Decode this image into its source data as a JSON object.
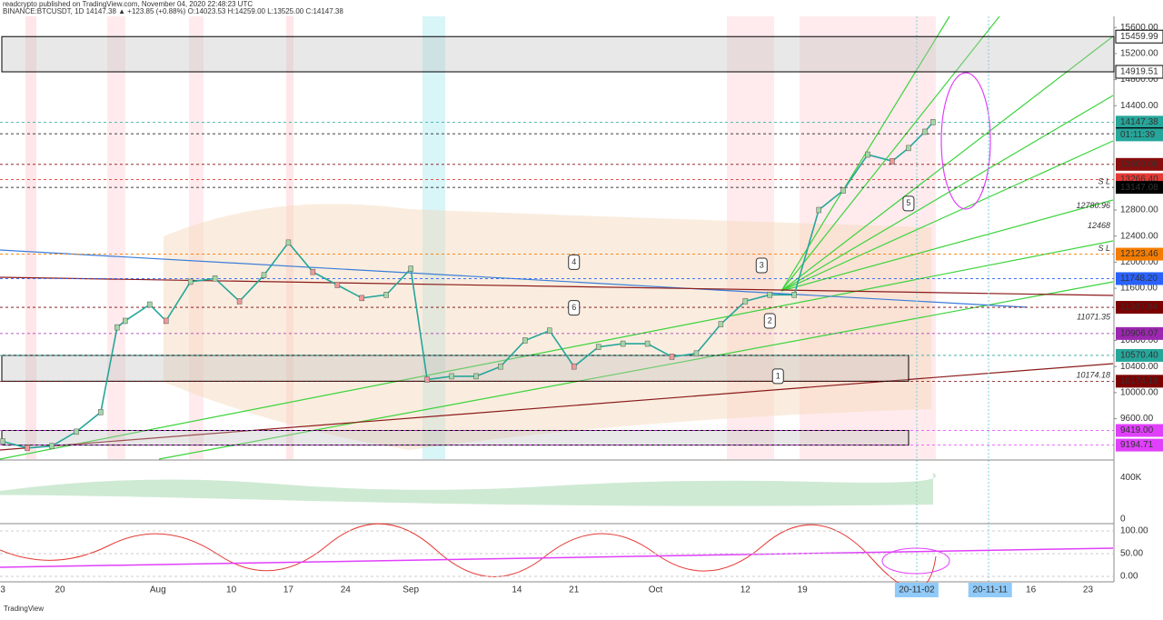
{
  "header": {
    "line1": "readcrypto published on TradingView.com, November 04, 2020 22:48:23 UTC",
    "line2": "BINANCE:BTCUSDT, 1D 14147.38 ▲ +123.85 (+0.88%) O:14023.53 H:14259.00 L:13525.00 C:14147.38"
  },
  "footer": "TradingView",
  "price_axis": {
    "ylim": [
      8980,
      15770
    ],
    "ticks": [
      {
        "value": 15600,
        "label": "15600.00"
      },
      {
        "value": 15200,
        "label": "15200.00"
      },
      {
        "value": 14800,
        "label": "14800.00"
      },
      {
        "value": 14400,
        "label": "14400.00"
      },
      {
        "value": 12800,
        "label": "12800.00"
      },
      {
        "value": 12400,
        "label": "12400.00"
      },
      {
        "value": 12000,
        "label": "12000.00"
      },
      {
        "value": 11600,
        "label": "11600.00"
      },
      {
        "value": 10800,
        "label": "10800.00"
      },
      {
        "value": 10400,
        "label": "10400.00"
      },
      {
        "value": 10000,
        "label": "10000.00"
      },
      {
        "value": 9600,
        "label": "9600.00"
      }
    ],
    "levels": [
      {
        "value": 15459.99,
        "label": "15459.99",
        "color": "#ffffff"
      },
      {
        "value": 14919.51,
        "label": "14919.51",
        "color": "#ffffff"
      },
      {
        "value": 14147.38,
        "label": "14147.38",
        "color": "#26a69a"
      },
      {
        "value": 13970,
        "label": "13970.00",
        "color": "#000000"
      },
      {
        "value": 13500,
        "label": "13500.00",
        "color": "#880e0e"
      },
      {
        "value": 13266.4,
        "label": "13266.40",
        "color": "#e53935"
      },
      {
        "value": 13147.08,
        "label": "13147.08",
        "color": "#000000"
      },
      {
        "value": 12123.46,
        "label": "12123.46",
        "color": "#f57c00"
      },
      {
        "value": 11748.2,
        "label": "11748.20",
        "color": "#2962ff"
      },
      {
        "value": 11307.84,
        "label": "11307.84",
        "color": "#7b0000"
      },
      {
        "value": 10906.07,
        "label": "10906.07",
        "color": "#9c27b0"
      },
      {
        "value": 10570.4,
        "label": "10570.40",
        "color": "#26a69a"
      },
      {
        "value": 10174.18,
        "label": "10174.18",
        "color": "#7b0000"
      },
      {
        "value": 9419,
        "label": "9419.00",
        "color": "#e040fb"
      },
      {
        "value": 9194.71,
        "label": "9194.71",
        "color": "#e040fb"
      }
    ],
    "countdown": "01:11:39"
  },
  "annotations": [
    {
      "value": 12780.96,
      "label": "12780.96"
    },
    {
      "value": 12468,
      "label": "12468"
    },
    {
      "value": 11071.35,
      "label": "11071.35"
    },
    {
      "value": 10174.18,
      "label": "10174.18"
    },
    {
      "value": 13147.08,
      "label": "S L"
    },
    {
      "value": 12123.46,
      "label": "S L"
    }
  ],
  "patterns": [
    {
      "label": "1",
      "date": "2020-10-16",
      "value": 10250
    },
    {
      "label": "2",
      "date": "2020-10-15",
      "value": 11100
    },
    {
      "label": "3",
      "date": "2020-10-14",
      "value": 11950
    },
    {
      "label": "4",
      "date": "2020-09-21",
      "value": 12000
    },
    {
      "label": "5",
      "date": "2020-11-01",
      "value": 12900
    },
    {
      "label": "6",
      "date": "2020-09-21",
      "value": 11300
    }
  ],
  "time_axis": {
    "ticks": [
      {
        "value": "2020-07-13",
        "label": "3"
      },
      {
        "value": "2020-07-20",
        "label": "20"
      },
      {
        "value": "2020-08-01",
        "label": "Aug"
      },
      {
        "value": "2020-08-10",
        "label": "10"
      },
      {
        "value": "2020-08-17",
        "label": "17"
      },
      {
        "value": "2020-08-24",
        "label": "24"
      },
      {
        "value": "2020-09-01",
        "label": "Sep"
      },
      {
        "value": "2020-09-14",
        "label": "14"
      },
      {
        "value": "2020-09-21",
        "label": "21"
      },
      {
        "value": "2020-10-01",
        "label": "Oct"
      },
      {
        "value": "2020-10-12",
        "label": "12"
      },
      {
        "value": "2020-10-19",
        "label": "19"
      },
      {
        "value": "2020-11-16",
        "label": "16"
      },
      {
        "value": "2020-11-23",
        "label": "23"
      }
    ],
    "highlights": [
      {
        "value": "2020-11-02",
        "label": "20-11-02"
      },
      {
        "value": "2020-11-11",
        "label": "20-11-11"
      }
    ]
  },
  "price": {
    "dates": [
      "2020-07-13",
      "2020-07-16",
      "2020-07-19",
      "2020-07-22",
      "2020-07-25",
      "2020-07-27",
      "2020-07-28",
      "2020-07-31",
      "2020-08-02",
      "2020-08-05",
      "2020-08-08",
      "2020-08-11",
      "2020-08-14",
      "2020-08-17",
      "2020-08-20",
      "2020-08-23",
      "2020-08-26",
      "2020-08-29",
      "2020-09-01",
      "2020-09-03",
      "2020-09-06",
      "2020-09-09",
      "2020-09-12",
      "2020-09-15",
      "2020-09-18",
      "2020-09-21",
      "2020-09-24",
      "2020-09-27",
      "2020-09-30",
      "2020-10-03",
      "2020-10-06",
      "2020-10-09",
      "2020-10-12",
      "2020-10-15",
      "2020-10-18",
      "2020-10-21",
      "2020-10-24",
      "2020-10-27",
      "2020-10-30",
      "2020-11-01",
      "2020-11-03",
      "2020-11-04"
    ],
    "closes": [
      9250,
      9150,
      9180,
      9400,
      9700,
      11000,
      11100,
      11350,
      11100,
      11700,
      11750,
      11400,
      11800,
      12300,
      11850,
      11650,
      11450,
      11500,
      11900,
      10200,
      10250,
      10250,
      10400,
      10800,
      10950,
      10400,
      10700,
      10750,
      10750,
      10550,
      10600,
      11050,
      11400,
      11500,
      11500,
      12800,
      13100,
      13650,
      13550,
      13750,
      14000,
      14147.38
    ],
    "color": "#26a69a"
  },
  "volume_axis": {
    "ticks": [
      {
        "value": 400000,
        "label": "400K"
      },
      0
    ]
  },
  "osc_axis": {
    "ticks": [
      {
        "value": 100,
        "label": "100.00"
      },
      {
        "value": 50,
        "label": "50.00"
      },
      {
        "value": 0,
        "label": "0.00"
      }
    ]
  }
}
